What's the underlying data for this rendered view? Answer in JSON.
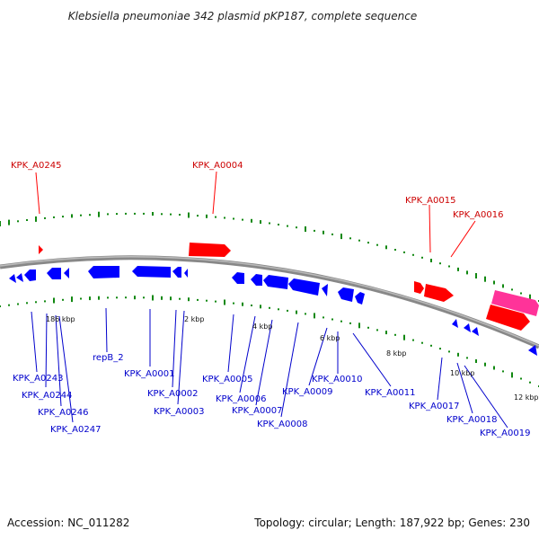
{
  "title": "Klebsiella pneumoniae 342 plasmid pKP187, complete sequence",
  "footer": {
    "accession": "Accession: NC_011282",
    "summary": "Topology: circular; Length: 187,922 bp; Genes: 230"
  },
  "colors": {
    "forward_gene": "#ff0000",
    "reverse_gene": "#0000ff",
    "pink_gene": "#ff3399",
    "backbone": "#888888",
    "gc_ticks": "#118811",
    "forward_label": "#cc0000",
    "reverse_label": "#0000cc"
  },
  "scale_labels": [
    "186 kbp",
    "2 kbp",
    "4 kbp",
    "6 kbp",
    "8 kbp",
    "10 kbp",
    "12 kbp"
  ],
  "forward_labels": [
    "KPK_A0245",
    "KPK_A0004",
    "KPK_A0015",
    "KPK_A0016"
  ],
  "reverse_labels": [
    "KPK_A0243",
    "KPK_A0244",
    "KPK_A0246",
    "KPK_A0247",
    "repB_2",
    "KPK_A0001",
    "KPK_A0002",
    "KPK_A0003",
    "KPK_A0005",
    "KPK_A0006",
    "KPK_A0007",
    "KPK_A0008",
    "KPK_A0009",
    "KPK_A0010",
    "KPK_A0011",
    "KPK_A0017",
    "KPK_A0018",
    "KPK_A0019"
  ]
}
